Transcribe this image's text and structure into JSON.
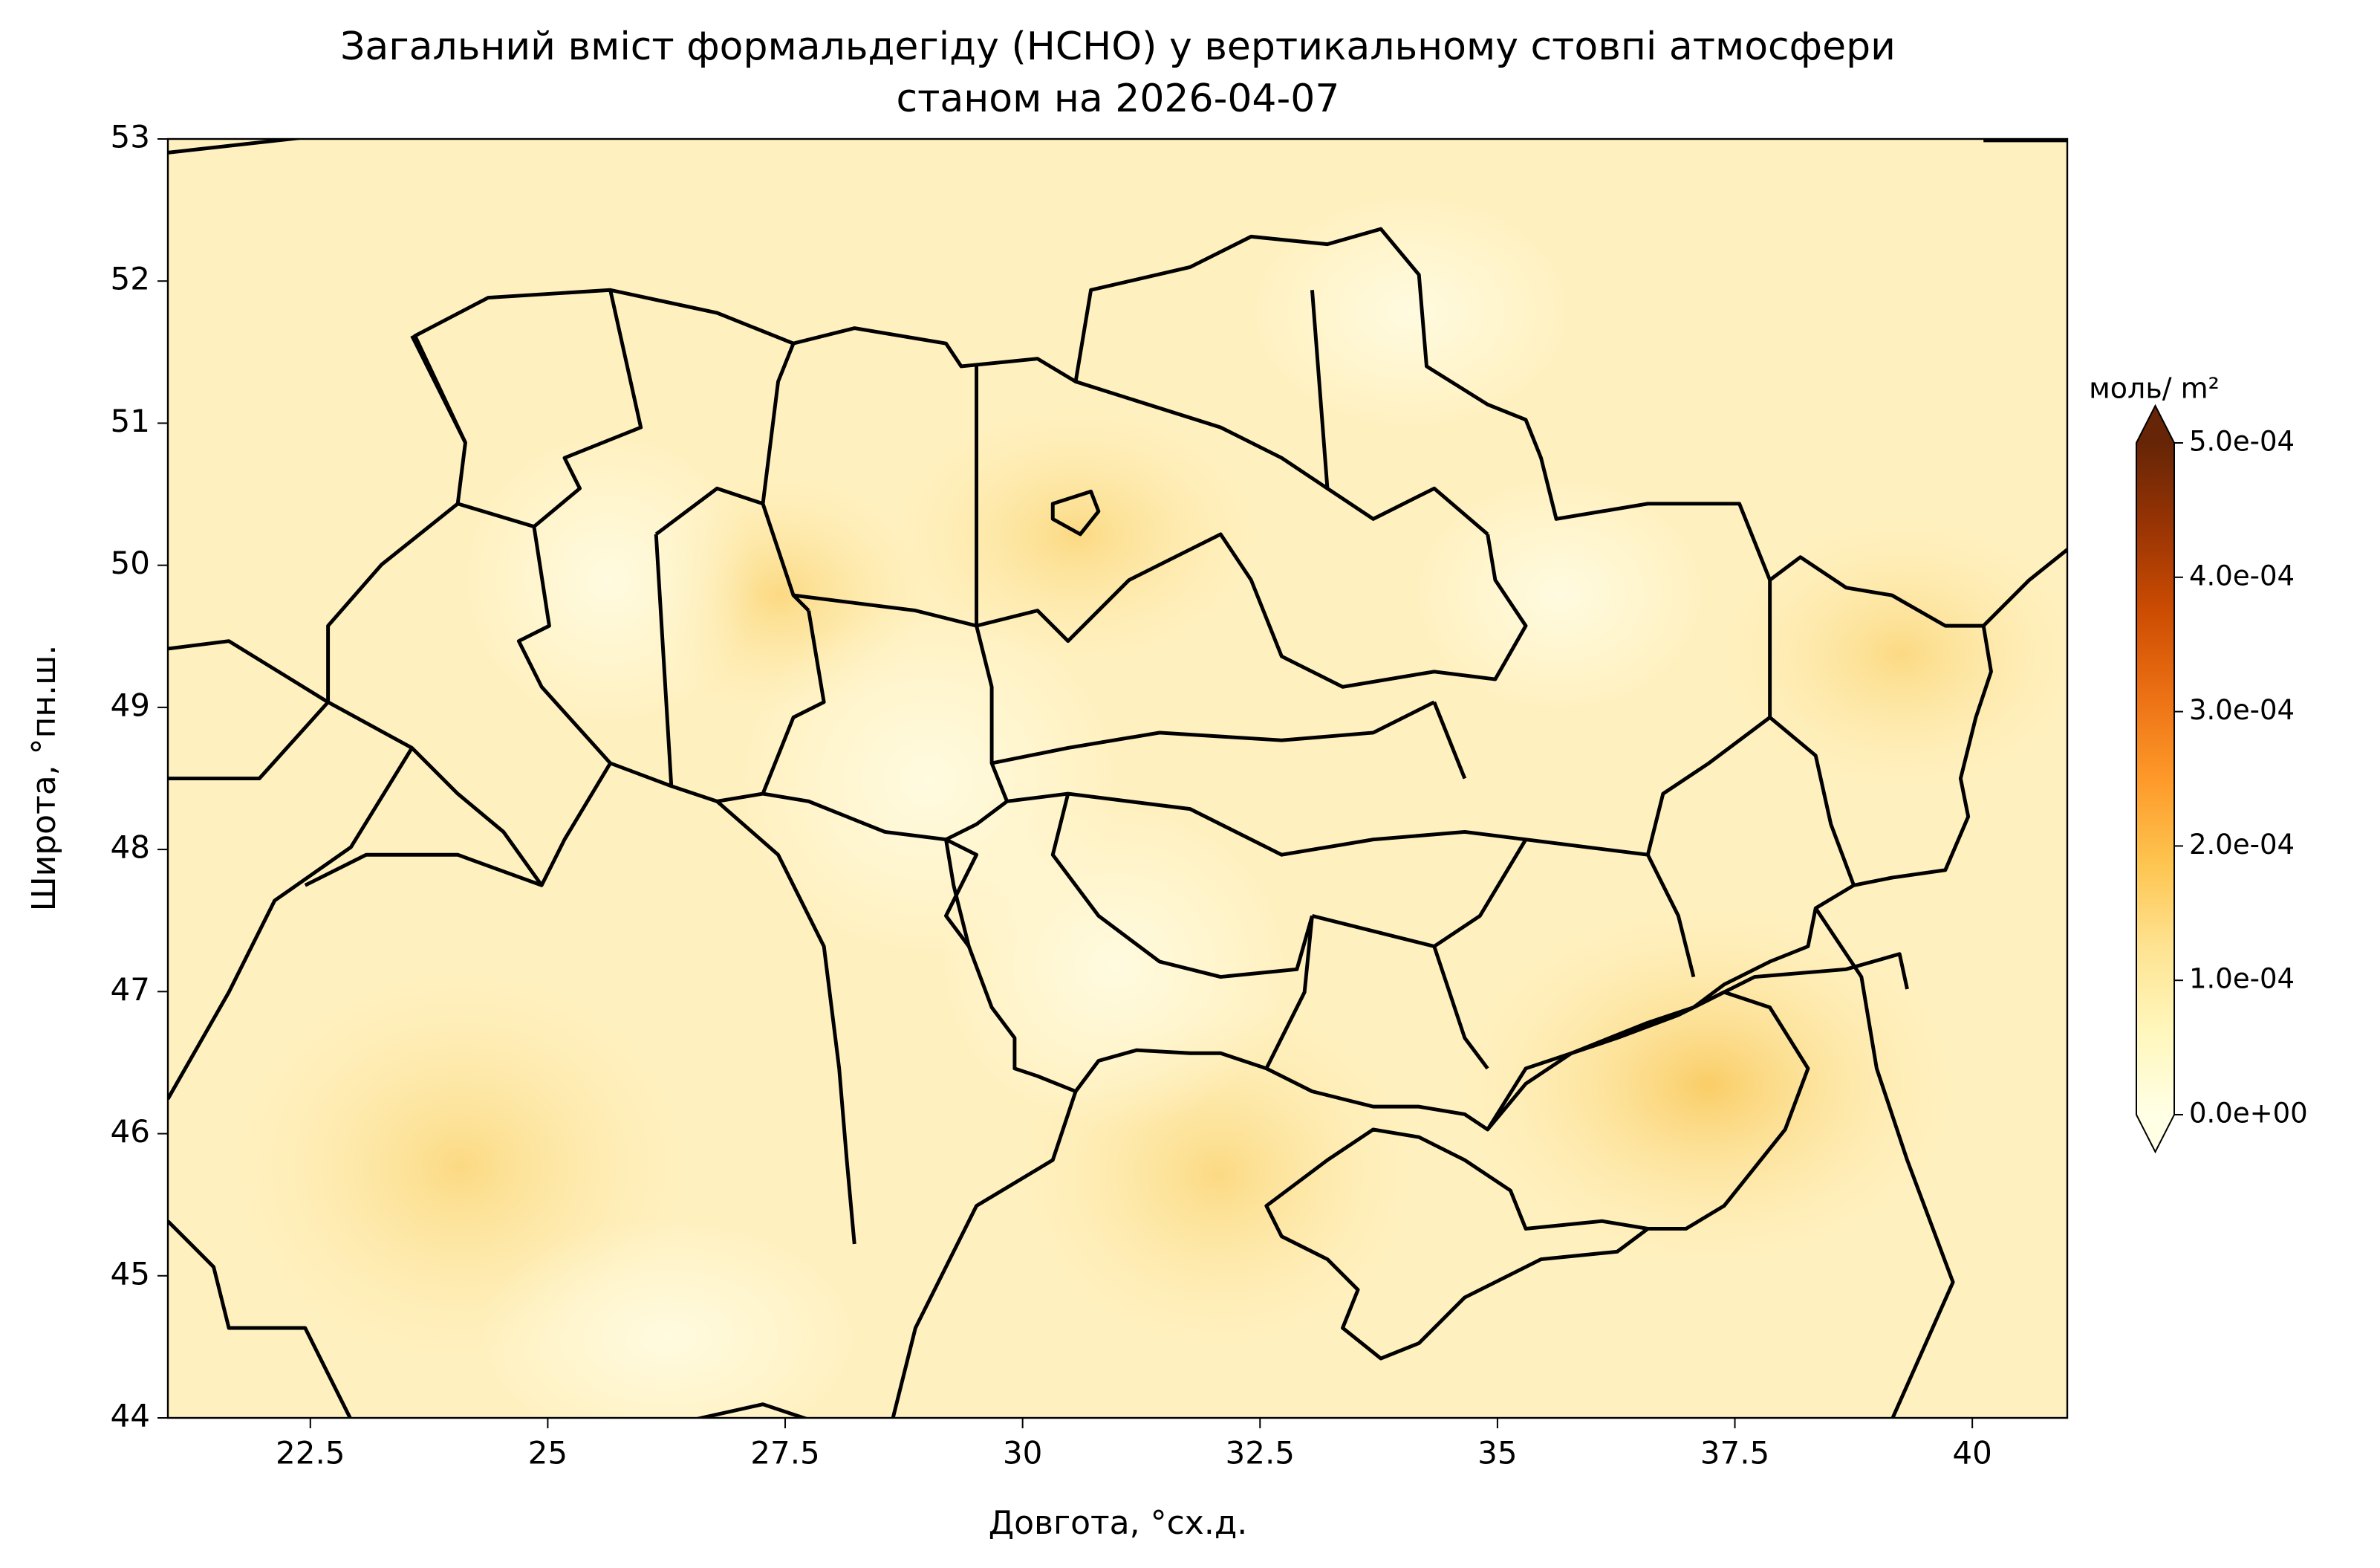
{
  "chart_data": {
    "type": "map",
    "title": [
      "Загальний вміст формальдегіду (HCHO) у вертикальному стовпі атмосфери",
      "станом на 2026-04-07"
    ],
    "x_label": "Довгота, °сх.д.",
    "y_label": "Широта, °пн.ш.",
    "xlim": [
      21,
      41
    ],
    "ylim": [
      44,
      53
    ],
    "xticks": [
      22.5,
      25.0,
      27.5,
      30.0,
      32.5,
      35.0,
      37.5,
      40.0
    ],
    "yticks": [
      44,
      45,
      46,
      47,
      48,
      49,
      50,
      51,
      52,
      53
    ],
    "colorbar": {
      "label": "моль/ m²",
      "lim": [
        0,
        0.0005
      ],
      "ticks": [
        {
          "value": 0,
          "label": "0.0e+00"
        },
        {
          "value": 0.0001,
          "label": "1.0e-04"
        },
        {
          "value": 0.0002,
          "label": "2.0e-04"
        },
        {
          "value": 0.0003,
          "label": "3.0e-04"
        },
        {
          "value": 0.0004,
          "label": "4.0e-04"
        },
        {
          "value": 0.0005,
          "label": "5.0e-04"
        }
      ],
      "colors": [
        "#ffffe5",
        "#fff7bc",
        "#fee391",
        "#fec44f",
        "#fe9929",
        "#ec7014",
        "#cc4c02",
        "#993404",
        "#662506"
      ]
    }
  }
}
